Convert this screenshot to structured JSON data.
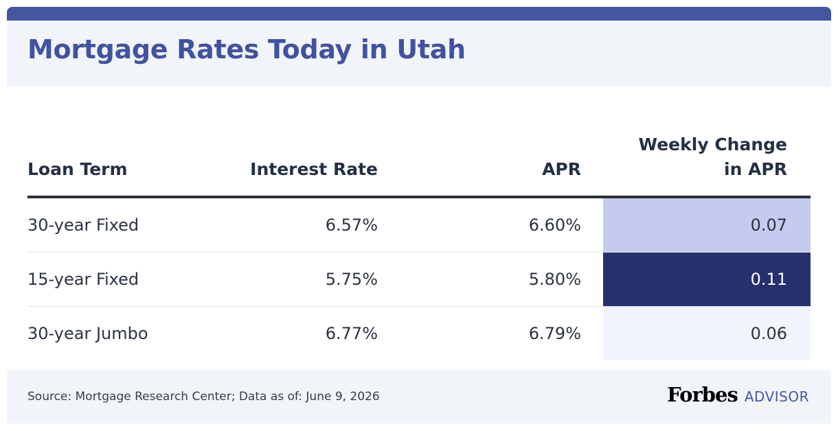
{
  "chart_data": {
    "type": "table",
    "title": "Mortgage Rates Today in Utah",
    "columns": {
      "loan_term": "Loan Term",
      "interest_rate": "Interest Rate",
      "apr": "APR",
      "weekly_change": "Weekly Change in APR"
    },
    "rows": [
      {
        "loan_term": "30-year Fixed",
        "interest_rate": "6.57%",
        "apr": "6.60%",
        "weekly_change": "0.07"
      },
      {
        "loan_term": "15-year Fixed",
        "interest_rate": "5.75%",
        "apr": "5.80%",
        "weekly_change": "0.11"
      },
      {
        "loan_term": "30-year Jumbo",
        "interest_rate": "6.77%",
        "apr": "6.79%",
        "weekly_change": "0.06"
      }
    ],
    "change_colors": [
      "#c5cbee",
      "#25306c",
      "#f2f5fd"
    ],
    "change_text_colors": [
      "#2b3340",
      "#ffffff",
      "#2b3340"
    ]
  },
  "footer": {
    "source": "Source: Mortgage Research Center; Data as of: June 9, 2026",
    "brand_name": "Forbes",
    "brand_sub": "ADVISOR"
  },
  "colors": {
    "accent": "#4557a0",
    "header_bg": "#f1f4f9",
    "text": "#243044"
  }
}
